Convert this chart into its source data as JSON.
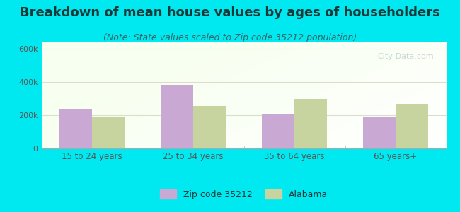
{
  "title": "Breakdown of mean house values by ages of householders",
  "subtitle": "(Note: State values scaled to Zip code 35212 population)",
  "categories": [
    "15 to 24 years",
    "25 to 34 years",
    "35 to 64 years",
    "65 years+"
  ],
  "zip_values": [
    240000,
    385000,
    210000,
    192000
  ],
  "state_values": [
    193000,
    255000,
    300000,
    270000
  ],
  "zip_color": "#c9a8d4",
  "state_color": "#c8d4a0",
  "zip_label": "Zip code 35212",
  "state_label": "Alabama",
  "ylim": [
    0,
    640000
  ],
  "yticks": [
    0,
    200000,
    400000,
    600000
  ],
  "ytick_labels": [
    "0",
    "200k",
    "400k",
    "600k"
  ],
  "background_color": "#00e8f0",
  "title_color": "#1a3a3a",
  "subtitle_color": "#336666",
  "tick_color": "#555555",
  "title_fontsize": 13,
  "subtitle_fontsize": 9,
  "bar_width": 0.32
}
